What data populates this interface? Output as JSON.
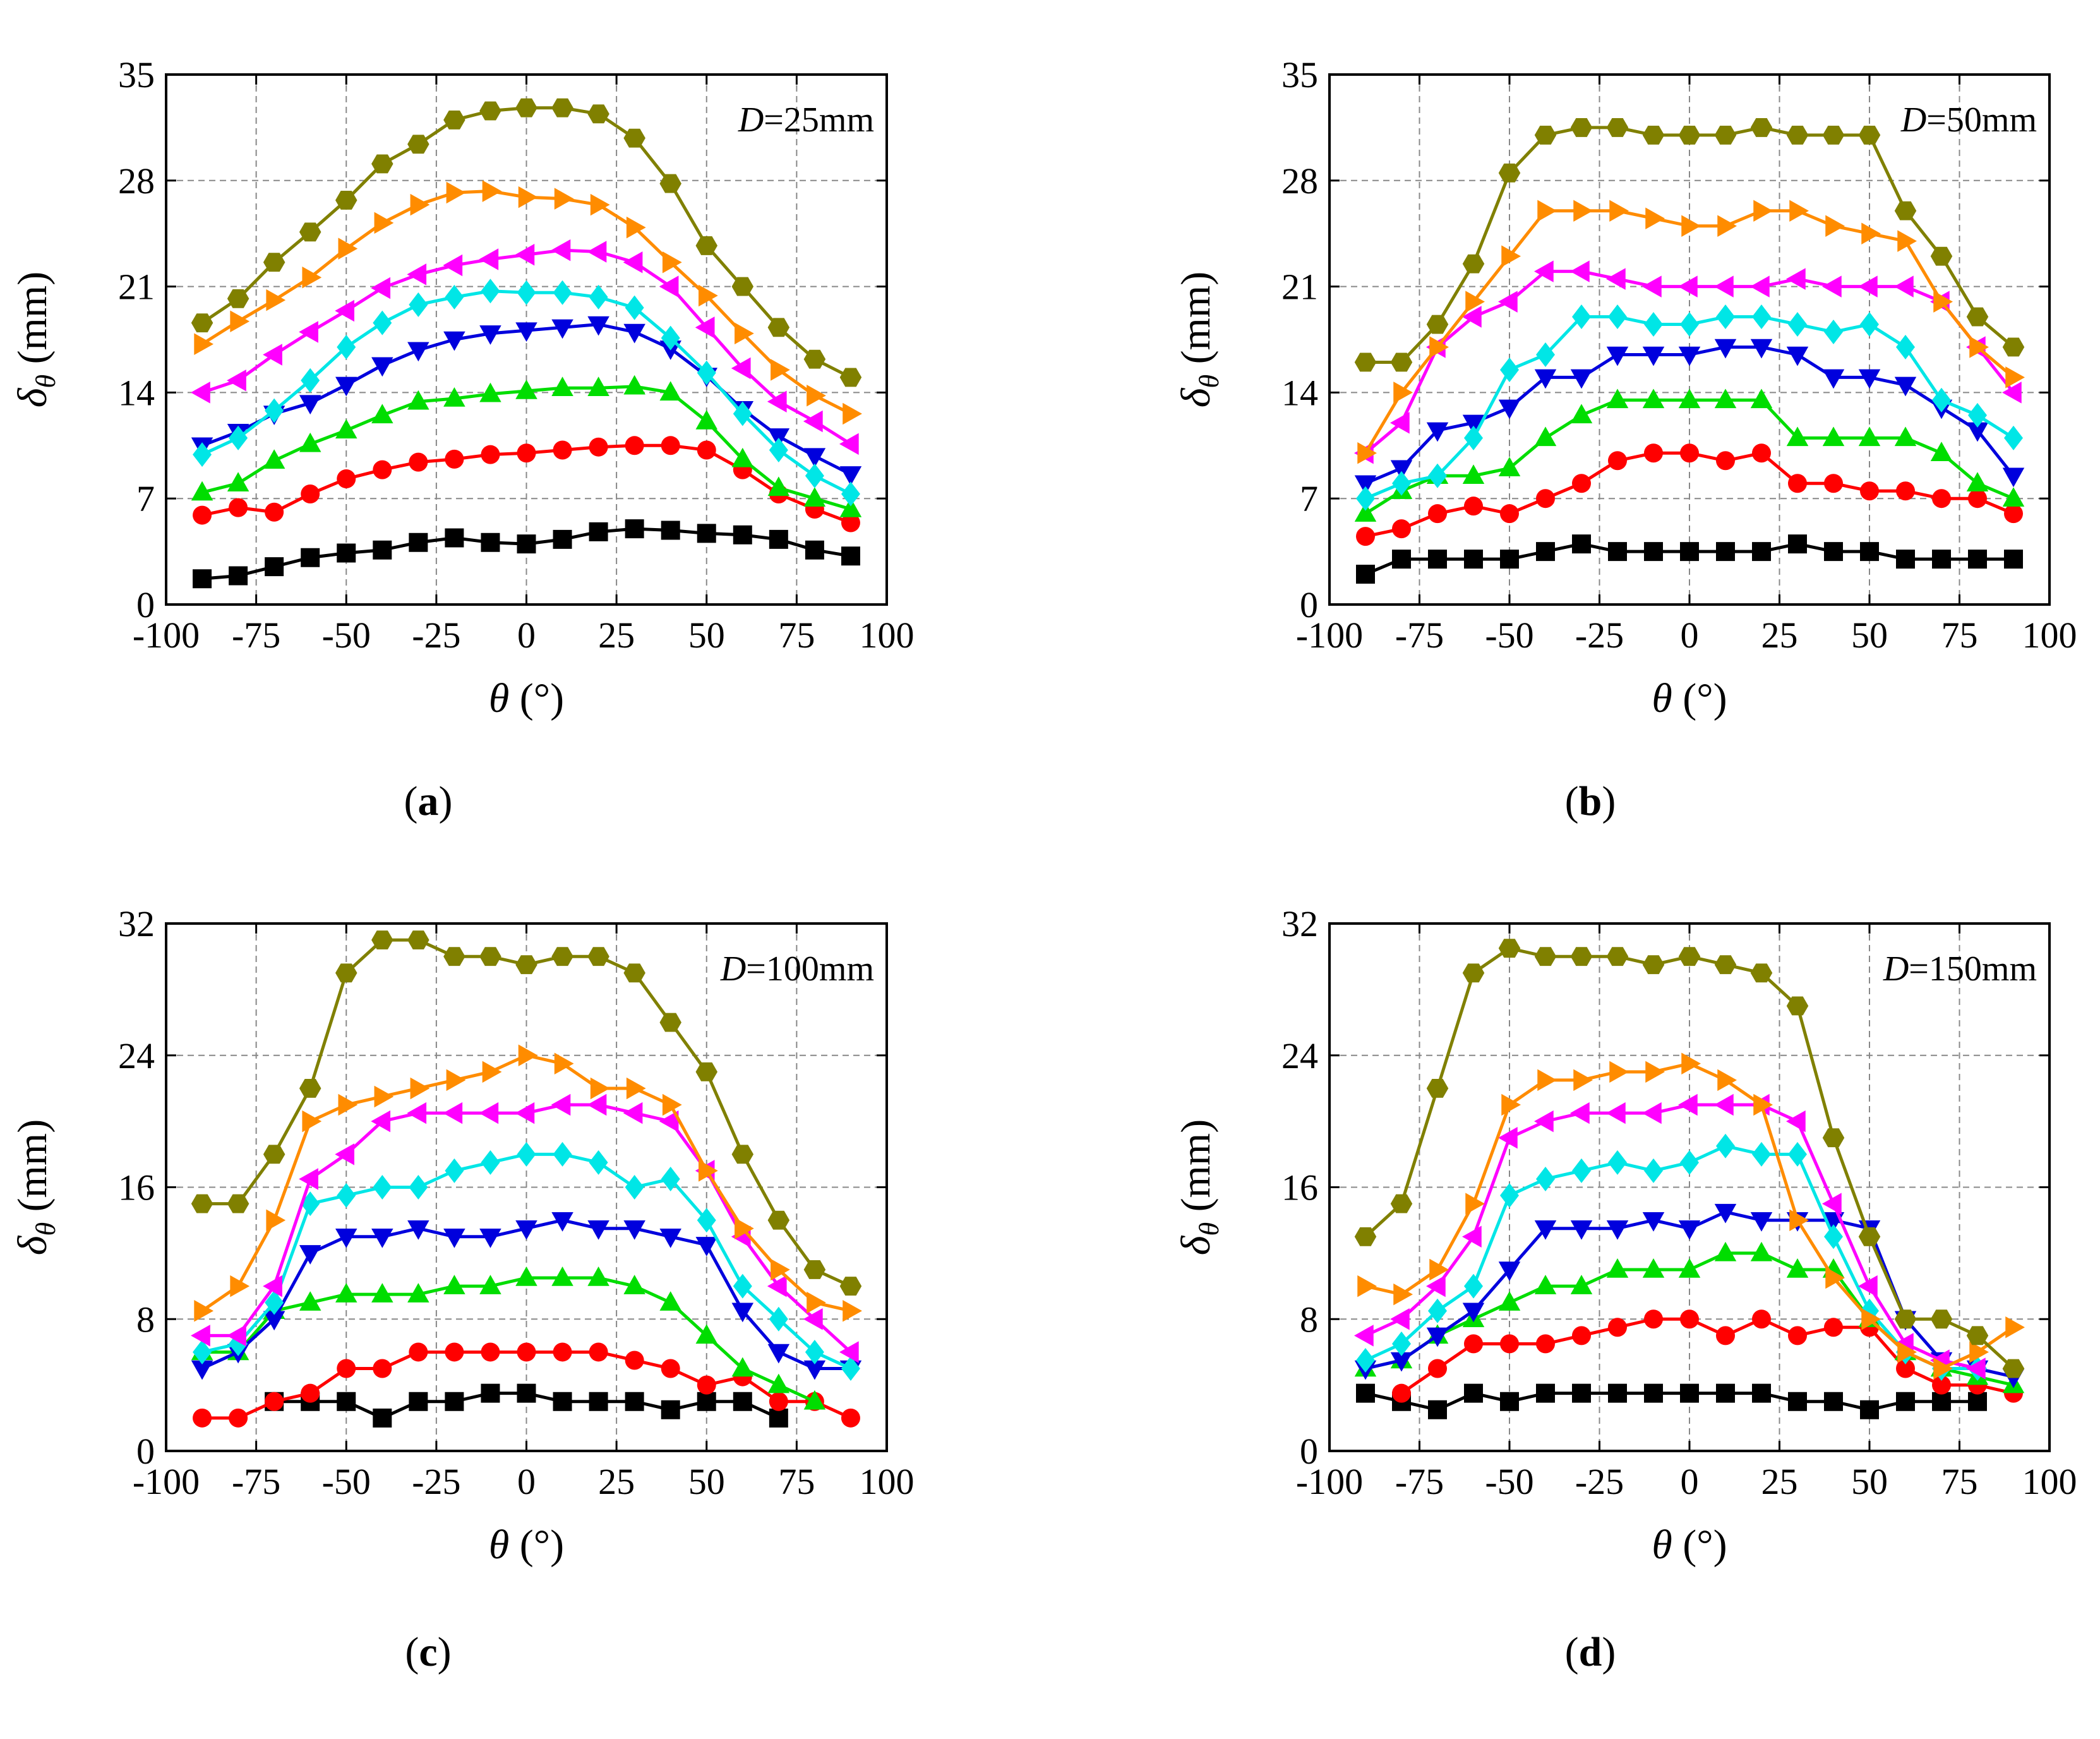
{
  "figure": {
    "panel_labels": [
      "a",
      "b",
      "c",
      "d"
    ]
  },
  "series_styles": [
    {
      "color": "#000000",
      "marker": "square"
    },
    {
      "color": "#ff0000",
      "marker": "circle"
    },
    {
      "color": "#00dd00",
      "marker": "triangle-up"
    },
    {
      "color": "#0000dd",
      "marker": "triangle-down"
    },
    {
      "color": "#00e6e6",
      "marker": "diamond"
    },
    {
      "color": "#ff00ff",
      "marker": "triangle-left"
    },
    {
      "color": "#ff8c00",
      "marker": "triangle-right"
    },
    {
      "color": "#808000",
      "marker": "hexagon"
    }
  ],
  "chart_data": [
    {
      "type": "line",
      "panel": "a",
      "annotation": "D=25mm",
      "annotation_italic_part": "D",
      "annotation_rest": "=25mm",
      "xlabel": "θ (°)",
      "ylabel": "δθ (mm)",
      "xlim": [
        -100,
        100
      ],
      "ylim": [
        0,
        35
      ],
      "xticks": [
        -100,
        -75,
        -50,
        -25,
        0,
        25,
        50,
        75,
        100
      ],
      "yticks": [
        0,
        7,
        14,
        21,
        28,
        35
      ],
      "grid": true,
      "x": [
        -90,
        -80,
        -70,
        -60,
        -50,
        -40,
        -30,
        -20,
        -10,
        0,
        10,
        20,
        30,
        40,
        50,
        60,
        70,
        80,
        90
      ],
      "series": [
        {
          "values": [
            1.7,
            1.9,
            2.5,
            3.1,
            3.4,
            3.6,
            4.1,
            4.4,
            4.1,
            4.0,
            4.3,
            4.8,
            5.0,
            4.9,
            4.7,
            4.6,
            4.3,
            3.6,
            3.2
          ]
        },
        {
          "values": [
            5.9,
            6.4,
            6.1,
            7.3,
            8.3,
            8.9,
            9.4,
            9.6,
            9.9,
            10.0,
            10.2,
            10.4,
            10.5,
            10.5,
            10.2,
            8.9,
            7.3,
            6.3,
            5.4
          ]
        },
        {
          "values": [
            7.4,
            8.0,
            9.5,
            10.6,
            11.5,
            12.5,
            13.4,
            13.6,
            13.9,
            14.1,
            14.3,
            14.3,
            14.4,
            14.0,
            12.1,
            9.6,
            7.7,
            7.0,
            6.3
          ]
        },
        {
          "values": [
            10.5,
            11.4,
            12.6,
            13.3,
            14.5,
            15.8,
            16.8,
            17.5,
            17.9,
            18.1,
            18.3,
            18.5,
            18.0,
            16.9,
            15.1,
            12.9,
            11.1,
            9.8,
            8.6
          ]
        },
        {
          "values": [
            9.9,
            11.0,
            12.8,
            14.8,
            17.0,
            18.6,
            19.8,
            20.3,
            20.7,
            20.6,
            20.6,
            20.3,
            19.6,
            17.6,
            15.3,
            12.6,
            10.2,
            8.5,
            7.3
          ]
        },
        {
          "values": [
            14.0,
            14.8,
            16.5,
            18.0,
            19.4,
            20.9,
            21.8,
            22.4,
            22.8,
            23.1,
            23.4,
            23.3,
            22.6,
            21.0,
            18.3,
            15.6,
            13.4,
            12.1,
            10.6
          ]
        },
        {
          "values": [
            17.2,
            18.7,
            20.1,
            21.6,
            23.5,
            25.2,
            26.4,
            27.2,
            27.3,
            26.9,
            26.8,
            26.4,
            24.9,
            22.6,
            20.4,
            17.9,
            15.5,
            13.8,
            12.6
          ]
        },
        {
          "values": [
            18.6,
            20.2,
            22.6,
            24.6,
            26.7,
            29.1,
            30.4,
            32.0,
            32.6,
            32.8,
            32.8,
            32.4,
            30.8,
            27.8,
            23.7,
            21.0,
            18.3,
            16.2,
            15.0
          ]
        }
      ]
    },
    {
      "type": "line",
      "panel": "b",
      "annotation": "D=50mm",
      "annotation_italic_part": "D",
      "annotation_rest": "=50mm",
      "xlabel": "θ (°)",
      "ylabel": "δθ (mm)",
      "xlim": [
        -100,
        100
      ],
      "ylim": [
        0,
        35
      ],
      "xticks": [
        -100,
        -75,
        -50,
        -25,
        0,
        25,
        50,
        75,
        100
      ],
      "yticks": [
        0,
        7,
        14,
        21,
        28,
        35
      ],
      "grid": true,
      "x": [
        -90,
        -80,
        -70,
        -60,
        -50,
        -40,
        -30,
        -20,
        -10,
        0,
        10,
        20,
        30,
        40,
        50,
        60,
        70,
        80,
        90
      ],
      "series": [
        {
          "values": [
            2.0,
            3.0,
            3.0,
            3.0,
            3.0,
            3.5,
            4.0,
            3.5,
            3.5,
            3.5,
            3.5,
            3.5,
            4.0,
            3.5,
            3.5,
            3.0,
            3.0,
            3.0,
            3.0
          ]
        },
        {
          "values": [
            4.5,
            5.0,
            6.0,
            6.5,
            6.0,
            7.0,
            8.0,
            9.5,
            10.0,
            10.0,
            9.5,
            10.0,
            8.0,
            8.0,
            7.5,
            7.5,
            7.0,
            7.0,
            6.0
          ]
        },
        {
          "values": [
            6.0,
            7.5,
            8.5,
            8.5,
            9.0,
            11.0,
            12.5,
            13.5,
            13.5,
            13.5,
            13.5,
            13.5,
            11.0,
            11.0,
            11.0,
            11.0,
            10.0,
            8.0,
            7.0
          ]
        },
        {
          "values": [
            8.0,
            9.0,
            11.5,
            12.0,
            13.0,
            15.0,
            15.0,
            16.5,
            16.5,
            16.5,
            17.0,
            17.0,
            16.5,
            15.0,
            15.0,
            14.5,
            13.0,
            11.5,
            8.5
          ]
        },
        {
          "values": [
            7.0,
            8.0,
            8.5,
            11.0,
            15.5,
            16.5,
            19.0,
            19.0,
            18.5,
            18.5,
            19.0,
            19.0,
            18.5,
            18.0,
            18.5,
            17.0,
            13.5,
            12.5,
            11.0
          ]
        },
        {
          "values": [
            10.0,
            12.0,
            17.0,
            19.0,
            20.0,
            22.0,
            22.0,
            21.5,
            21.0,
            21.0,
            21.0,
            21.0,
            21.5,
            21.0,
            21.0,
            21.0,
            20.0,
            17.0,
            14.0
          ]
        },
        {
          "values": [
            10.0,
            14.0,
            17.0,
            20.0,
            23.0,
            26.0,
            26.0,
            26.0,
            25.5,
            25.0,
            25.0,
            26.0,
            26.0,
            25.0,
            24.5,
            24.0,
            20.0,
            17.0,
            15.0
          ]
        },
        {
          "values": [
            16.0,
            16.0,
            18.5,
            22.5,
            28.5,
            31.0,
            31.5,
            31.5,
            31.0,
            31.0,
            31.0,
            31.5,
            31.0,
            31.0,
            31.0,
            26.0,
            23.0,
            19.0,
            17.0
          ]
        }
      ]
    },
    {
      "type": "line",
      "panel": "c",
      "annotation": "D=100mm",
      "annotation_italic_part": "D",
      "annotation_rest": "=100mm",
      "xlabel": "θ (°)",
      "ylabel": "δθ (mm)",
      "xlim": [
        -100,
        100
      ],
      "ylim": [
        0,
        32
      ],
      "xticks": [
        -100,
        -75,
        -50,
        -25,
        0,
        25,
        50,
        75,
        100
      ],
      "yticks": [
        0,
        8,
        16,
        24,
        32
      ],
      "grid": true,
      "x": [
        -90,
        -80,
        -70,
        -60,
        -50,
        -40,
        -30,
        -20,
        -10,
        0,
        10,
        20,
        30,
        40,
        50,
        60,
        70,
        80,
        90
      ],
      "series": [
        {
          "values": [
            null,
            null,
            3.0,
            3.0,
            3.0,
            2.0,
            3.0,
            3.0,
            3.5,
            3.5,
            3.0,
            3.0,
            3.0,
            2.5,
            3.0,
            3.0,
            2.0,
            null,
            null
          ]
        },
        {
          "values": [
            2.0,
            2.0,
            3.0,
            3.5,
            5.0,
            5.0,
            6.0,
            6.0,
            6.0,
            6.0,
            6.0,
            6.0,
            5.5,
            5.0,
            4.0,
            4.5,
            3.0,
            3.0,
            2.0
          ]
        },
        {
          "values": [
            6.0,
            6.0,
            8.5,
            9.0,
            9.5,
            9.5,
            9.5,
            10.0,
            10.0,
            10.5,
            10.5,
            10.5,
            10.0,
            9.0,
            7.0,
            5.0,
            4.0,
            3.0,
            null
          ]
        },
        {
          "values": [
            5.0,
            6.0,
            8.0,
            12.0,
            13.0,
            13.0,
            13.5,
            13.0,
            13.0,
            13.5,
            14.0,
            13.5,
            13.5,
            13.0,
            12.5,
            8.5,
            6.0,
            5.0,
            5.0
          ]
        },
        {
          "values": [
            6.0,
            6.5,
            9.0,
            15.0,
            15.5,
            16.0,
            16.0,
            17.0,
            17.5,
            18.0,
            18.0,
            17.5,
            16.0,
            16.5,
            14.0,
            10.0,
            8.0,
            6.0,
            5.0
          ]
        },
        {
          "values": [
            7.0,
            7.0,
            10.0,
            16.5,
            18.0,
            20.0,
            20.5,
            20.5,
            20.5,
            20.5,
            21.0,
            21.0,
            20.5,
            20.0,
            17.0,
            13.0,
            10.0,
            8.0,
            6.0
          ]
        },
        {
          "values": [
            8.5,
            10.0,
            14.0,
            20.0,
            21.0,
            21.5,
            22.0,
            22.5,
            23.0,
            24.0,
            23.5,
            22.0,
            22.0,
            21.0,
            17.0,
            13.5,
            11.0,
            9.0,
            8.5
          ]
        },
        {
          "values": [
            15.0,
            15.0,
            18.0,
            22.0,
            29.0,
            31.0,
            31.0,
            30.0,
            30.0,
            29.5,
            30.0,
            30.0,
            29.0,
            26.0,
            23.0,
            18.0,
            14.0,
            11.0,
            10.0
          ]
        }
      ]
    },
    {
      "type": "line",
      "panel": "d",
      "annotation": "D=150mm",
      "annotation_italic_part": "D",
      "annotation_rest": "=150mm",
      "xlabel": "θ (°)",
      "ylabel": "δθ (mm)",
      "xlim": [
        -100,
        100
      ],
      "ylim": [
        0,
        32
      ],
      "xticks": [
        -100,
        -75,
        -50,
        -25,
        0,
        25,
        50,
        75,
        100
      ],
      "yticks": [
        0,
        8,
        16,
        24,
        32
      ],
      "grid": true,
      "x": [
        -90,
        -80,
        -70,
        -60,
        -50,
        -40,
        -30,
        -20,
        -10,
        0,
        10,
        20,
        30,
        40,
        50,
        60,
        70,
        80,
        90
      ],
      "series": [
        {
          "values": [
            3.5,
            3.0,
            2.5,
            3.5,
            3.0,
            3.5,
            3.5,
            3.5,
            3.5,
            3.5,
            3.5,
            3.5,
            3.0,
            3.0,
            2.5,
            3.0,
            3.0,
            3.0,
            null
          ]
        },
        {
          "values": [
            null,
            3.5,
            5.0,
            6.5,
            6.5,
            6.5,
            7.0,
            7.5,
            8.0,
            8.0,
            7.0,
            8.0,
            7.0,
            7.5,
            7.5,
            5.0,
            4.0,
            4.0,
            3.5
          ]
        },
        {
          "values": [
            5.0,
            5.5,
            7.0,
            8.0,
            9.0,
            10.0,
            10.0,
            11.0,
            11.0,
            11.0,
            12.0,
            12.0,
            11.0,
            11.0,
            8.0,
            6.0,
            5.0,
            4.5,
            4.0
          ]
        },
        {
          "values": [
            5.0,
            5.5,
            7.0,
            8.5,
            11.0,
            13.5,
            13.5,
            13.5,
            14.0,
            13.5,
            14.5,
            14.0,
            14.0,
            14.0,
            13.5,
            8.0,
            5.5,
            5.0,
            4.5
          ]
        },
        {
          "values": [
            5.5,
            6.5,
            8.5,
            10.0,
            15.5,
            16.5,
            17.0,
            17.5,
            17.0,
            17.5,
            18.5,
            18.0,
            18.0,
            13.0,
            8.5,
            6.0,
            5.0,
            5.0,
            null
          ]
        },
        {
          "values": [
            7.0,
            8.0,
            10.0,
            13.0,
            19.0,
            20.0,
            20.5,
            20.5,
            20.5,
            21.0,
            21.0,
            21.0,
            20.0,
            15.0,
            10.0,
            6.5,
            5.5,
            5.0,
            null
          ]
        },
        {
          "values": [
            10.0,
            9.5,
            11.0,
            15.0,
            21.0,
            22.5,
            22.5,
            23.0,
            23.0,
            23.5,
            22.5,
            21.0,
            14.0,
            10.5,
            8.0,
            6.0,
            5.0,
            6.0,
            7.5
          ]
        },
        {
          "values": [
            13.0,
            15.0,
            22.0,
            29.0,
            30.5,
            30.0,
            30.0,
            30.0,
            29.5,
            30.0,
            29.5,
            29.0,
            27.0,
            19.0,
            13.0,
            8.0,
            8.0,
            7.0,
            5.0
          ]
        }
      ]
    }
  ]
}
